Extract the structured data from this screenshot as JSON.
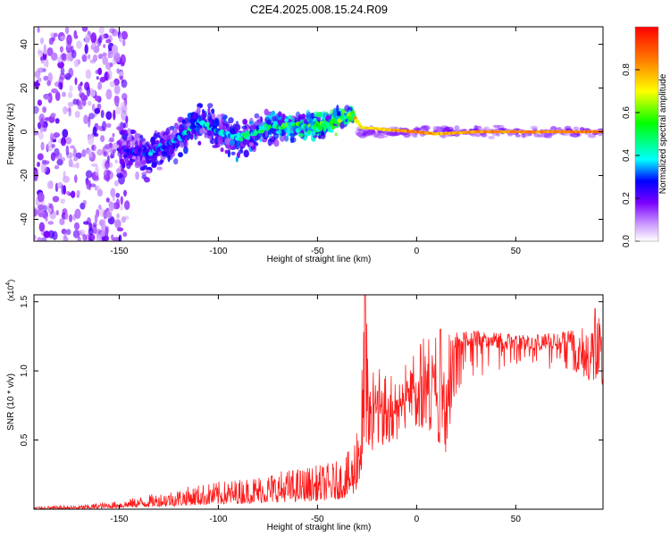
{
  "title": "C2E4.2025.008.15.24.R09",
  "chart_data": [
    {
      "type": "heatmap",
      "xlabel": "Height of straight line (km)",
      "ylabel": "Frequency (Hz)",
      "xlim": [
        -193,
        94
      ],
      "ylim": [
        -50,
        48
      ],
      "xticks": [
        -150,
        -100,
        -50,
        0,
        50
      ],
      "xtick_labels": [
        "-150",
        "-100",
        "-50",
        "0",
        "50"
      ],
      "yticks": [
        -40,
        -20,
        0,
        20,
        40
      ],
      "ytick_labels": [
        "-40",
        "-20",
        "0",
        "20",
        "40"
      ],
      "colorbar": {
        "label": "Normalized spectral amplitude",
        "range": [
          0,
          1
        ],
        "ticks": [
          0.0,
          0.2,
          0.4,
          0.6,
          0.8
        ],
        "tick_labels": [
          "0.0",
          "0.2",
          "0.4",
          "0.6",
          "0.8"
        ],
        "colormap": [
          "#ffffff",
          "#cc99ff",
          "#7a00ff",
          "#0000ff",
          "#00ffff",
          "#00ff00",
          "#ffff00",
          "#ff8000",
          "#ff0000"
        ]
      },
      "features": {
        "scatter_region_x": [
          -193,
          -150
        ],
        "broad_band": [
          {
            "x": -150,
            "halfwidth": 18,
            "intensity": 0.2
          },
          {
            "x": -120,
            "halfwidth": 13,
            "intensity": 0.25
          },
          {
            "x": -100,
            "halfwidth": 13,
            "intensity": 0.25
          },
          {
            "x": -75,
            "halfwidth": 10,
            "intensity": 0.3
          },
          {
            "x": -50,
            "halfwidth": 10,
            "intensity": 0.4
          },
          {
            "x": -35,
            "halfwidth": 6,
            "intensity": 0.5
          }
        ],
        "ridge": [
          {
            "x": -148,
            "f": -8,
            "amp": 0.25
          },
          {
            "x": -135,
            "f": -10,
            "amp": 0.3
          },
          {
            "x": -120,
            "f": -3,
            "amp": 0.35
          },
          {
            "x": -110,
            "f": 5,
            "amp": 0.4
          },
          {
            "x": -100,
            "f": 0,
            "amp": 0.35
          },
          {
            "x": -90,
            "f": -3,
            "amp": 0.4
          },
          {
            "x": -75,
            "f": 2,
            "amp": 0.45
          },
          {
            "x": -60,
            "f": 3,
            "amp": 0.5
          },
          {
            "x": -50,
            "f": 2,
            "amp": 0.55
          },
          {
            "x": -40,
            "f": 5,
            "amp": 0.5
          },
          {
            "x": -32,
            "f": 8,
            "amp": 0.6
          },
          {
            "x": -28,
            "f": 2,
            "amp": 0.75
          },
          {
            "x": -15,
            "f": 1,
            "amp": 0.8
          },
          {
            "x": 0,
            "f": 0,
            "amp": 0.9
          },
          {
            "x": 10,
            "f": -1,
            "amp": 0.8
          },
          {
            "x": 30,
            "f": 0,
            "amp": 0.85
          },
          {
            "x": 60,
            "f": 0,
            "amp": 0.85
          },
          {
            "x": 94,
            "f": 0,
            "amp": 0.9
          }
        ]
      }
    },
    {
      "type": "line",
      "xlabel": "Height of straight line (km)",
      "ylabel": "SNR (10 * v/v)",
      "y_multiplier": "(x10",
      "y_multiplier_exp": "4",
      "y_multiplier_close": ")",
      "xlim": [
        -193,
        94
      ],
      "ylim": [
        0,
        1.55
      ],
      "xticks": [
        -150,
        -100,
        -50,
        0,
        50
      ],
      "xtick_labels": [
        "-150",
        "-100",
        "-50",
        "0",
        "50"
      ],
      "yticks": [
        0.5,
        1.0,
        1.5
      ],
      "ytick_labels": [
        "0.5",
        "1.0",
        "1.5"
      ],
      "color": "#ff0000",
      "envelope": {
        "x": [
          -193,
          -170,
          -150,
          -130,
          -110,
          -90,
          -70,
          -50,
          -40,
          -32,
          -28,
          -26,
          -24,
          -20,
          -10,
          -5,
          0,
          5,
          10,
          15,
          18,
          22,
          30,
          40,
          50,
          60,
          70,
          80,
          85,
          90,
          94
        ],
        "lo": [
          0.0,
          0.0,
          0.01,
          0.02,
          0.03,
          0.04,
          0.05,
          0.06,
          0.07,
          0.1,
          0.2,
          0.4,
          0.4,
          0.45,
          0.5,
          0.6,
          0.6,
          0.55,
          0.5,
          0.4,
          0.7,
          0.9,
          0.95,
          1.0,
          1.05,
          1.05,
          1.0,
          1.0,
          0.95,
          0.9,
          0.85
        ],
        "hi": [
          0.02,
          0.03,
          0.06,
          0.12,
          0.18,
          0.22,
          0.28,
          0.32,
          0.35,
          0.45,
          1.0,
          1.55,
          1.1,
          1.05,
          1.0,
          1.1,
          1.2,
          1.25,
          1.3,
          1.3,
          1.25,
          1.3,
          1.3,
          1.28,
          1.26,
          1.26,
          1.28,
          1.3,
          1.35,
          1.45,
          1.32
        ]
      },
      "peaks": [
        {
          "x": -26,
          "y": 1.55
        },
        {
          "x": 90,
          "y": 1.45
        },
        {
          "x": 12,
          "y": 1.3
        }
      ]
    }
  ]
}
